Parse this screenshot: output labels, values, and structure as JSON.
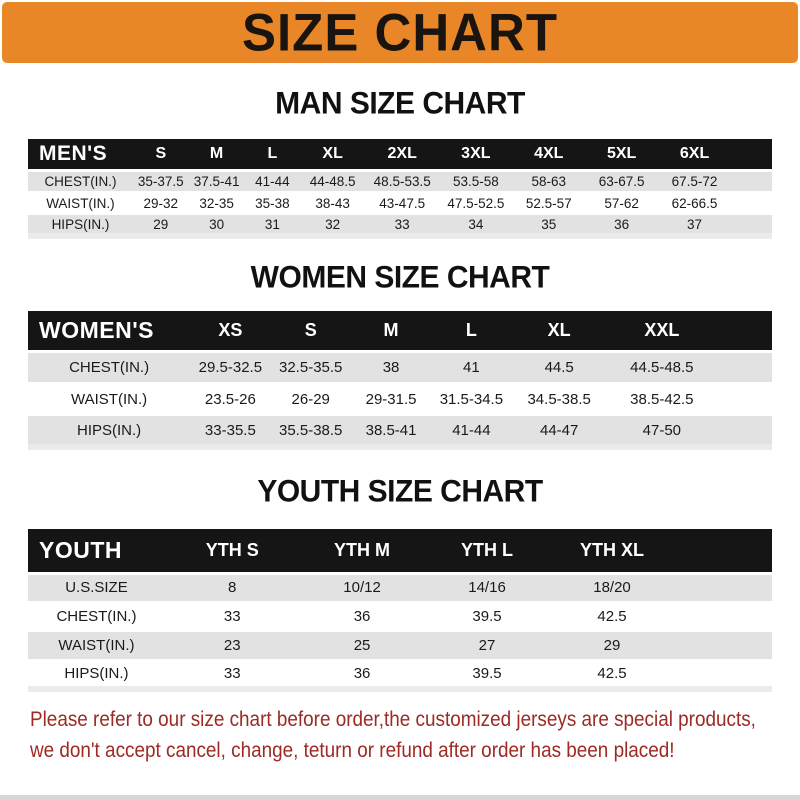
{
  "banner": {
    "title": "SIZE CHART"
  },
  "colors": {
    "banner-bg": "#e98728",
    "bar-bg": "#151515",
    "stripe-gray": "#e2e2e2",
    "strip-light": "#ebebeb",
    "footnote-red": "#9d2a24"
  },
  "chart_data": [
    {
      "type": "table",
      "title": "MAN SIZE CHART",
      "columns": [
        "MEN'S",
        "S",
        "M",
        "L",
        "XL",
        "2XL",
        "3XL",
        "4XL",
        "5XL",
        "6XL"
      ],
      "rows": [
        [
          "CHEST(IN.)",
          "35-37.5",
          "37.5-41",
          "41-44",
          "44-48.5",
          "48.5-53.5",
          "53.5-58",
          "58-63",
          "63-67.5",
          "67.5-72"
        ],
        [
          "WAIST(IN.)",
          "29-32",
          "32-35",
          "35-38",
          "38-43",
          "43-47.5",
          "47.5-52.5",
          "52.5-57",
          "57-62",
          "62-66.5"
        ],
        [
          "HIPS(IN.)",
          "29",
          "30",
          "31",
          "32",
          "33",
          "34",
          "35",
          "36",
          "37"
        ]
      ]
    },
    {
      "type": "table",
      "title": "WOMEN SIZE CHART",
      "columns": [
        "WOMEN'S",
        "XS",
        "S",
        "M",
        "L",
        "XL",
        "XXL"
      ],
      "rows": [
        [
          "CHEST(IN.)",
          "29.5-32.5",
          "32.5-35.5",
          "38",
          "41",
          "44.5",
          "44.5-48.5"
        ],
        [
          "WAIST(IN.)",
          "23.5-26",
          "26-29",
          "29-31.5",
          "31.5-34.5",
          "34.5-38.5",
          "38.5-42.5"
        ],
        [
          "HIPS(IN.)",
          "33-35.5",
          "35.5-38.5",
          "38.5-41",
          "41-44",
          "44-47",
          "47-50"
        ]
      ]
    },
    {
      "type": "table",
      "title": "YOUTH SIZE CHART",
      "columns": [
        "YOUTH",
        "YTH S",
        "YTH M",
        "YTH L",
        "YTH XL"
      ],
      "rows": [
        [
          "U.S.SIZE",
          "8",
          "10/12",
          "14/16",
          "18/20"
        ],
        [
          "CHEST(IN.)",
          "33",
          "36",
          "39.5",
          "42.5"
        ],
        [
          "WAIST(IN.)",
          "23",
          "25",
          "27",
          "29"
        ],
        [
          "HIPS(IN.)",
          "33",
          "36",
          "39.5",
          "42.5"
        ]
      ]
    }
  ],
  "footnote": {
    "line1": "Please refer to our size chart before order,the customized jerseys are special products,",
    "line2": "we don't accept cancel, change, teturn or refund after order has been placed!"
  }
}
